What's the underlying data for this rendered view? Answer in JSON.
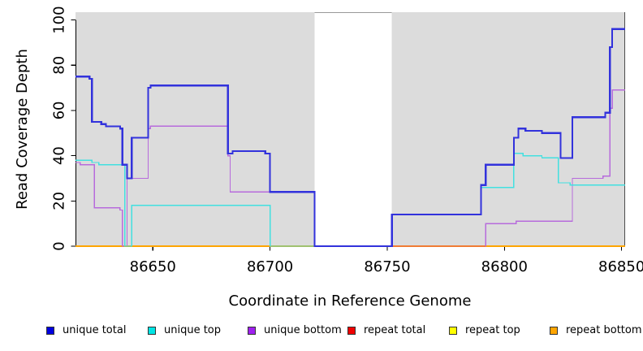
{
  "chart_data": {
    "type": "line",
    "subtype": "step-coverage-plot",
    "title": "",
    "xlabel": "Coordinate in Reference Genome",
    "ylabel": "Read Coverage Depth",
    "xlim": [
      86617,
      86851.5
    ],
    "ylim": [
      0,
      103.4
    ],
    "x_ticks": [
      86650,
      86700,
      86750,
      86800,
      86850
    ],
    "y_ticks": [
      0,
      20,
      40,
      60,
      80,
      100
    ],
    "grid": false,
    "plot_bg": "#dcdcdc",
    "unique_region_spans": [
      [
        86617,
        86719
      ],
      [
        86752,
        86851.5
      ]
    ],
    "repeat_region_span": [
      86719,
      86752
    ],
    "series": [
      {
        "name": "repeat top",
        "color": "#ffff00",
        "width": 1.2,
        "points": [
          [
            86617,
            0
          ]
        ]
      },
      {
        "name": "repeat total",
        "color": "#e05468",
        "width": 1.4,
        "points": [
          [
            86617,
            0
          ]
        ],
        "visible_zero_segment": [
          86752,
          86792
        ]
      },
      {
        "name": "repeat bottom",
        "color": "#ffa500",
        "width": 1.6,
        "points": [
          [
            86617,
            0
          ]
        ]
      },
      {
        "name": "unique bottom",
        "color": "#b76bdc",
        "width": 1.4,
        "points": [
          [
            86617,
            37
          ],
          [
            86619,
            36
          ],
          [
            86625,
            17
          ],
          [
            86636,
            16
          ],
          [
            86637,
            0
          ],
          [
            86639,
            30
          ],
          [
            86648,
            52
          ],
          [
            86649,
            53
          ],
          [
            86682,
            40
          ],
          [
            86683,
            24
          ],
          [
            86719,
            0
          ],
          [
            86792,
            10
          ],
          [
            86805,
            11
          ],
          [
            86829,
            30
          ],
          [
            86842,
            31
          ],
          [
            86845,
            61
          ],
          [
            86846,
            69
          ]
        ]
      },
      {
        "name": "unique top",
        "color": "#42e0e0",
        "width": 1.4,
        "points": [
          [
            86617,
            38
          ],
          [
            86624,
            37
          ],
          [
            86627,
            36
          ],
          [
            86638,
            0
          ],
          [
            86641,
            18
          ],
          [
            86700,
            0
          ],
          [
            86752,
            14
          ],
          [
            86790,
            26
          ],
          [
            86804,
            41
          ],
          [
            86808,
            40
          ],
          [
            86816,
            39
          ],
          [
            86823,
            28
          ],
          [
            86828,
            27
          ]
        ]
      },
      {
        "name": "unique total",
        "color": "#3232dc",
        "width": 2.2,
        "points": [
          [
            86617,
            75
          ],
          [
            86623,
            74
          ],
          [
            86624,
            55
          ],
          [
            86628,
            54
          ],
          [
            86630,
            53
          ],
          [
            86636,
            52
          ],
          [
            86637,
            36
          ],
          [
            86639,
            30
          ],
          [
            86641,
            48
          ],
          [
            86648,
            70
          ],
          [
            86649,
            71
          ],
          [
            86682,
            41
          ],
          [
            86684,
            42
          ],
          [
            86698,
            41
          ],
          [
            86700,
            24
          ],
          [
            86719,
            0
          ],
          [
            86752,
            14
          ],
          [
            86790,
            27
          ],
          [
            86792,
            36
          ],
          [
            86804,
            48
          ],
          [
            86806,
            52
          ],
          [
            86809,
            51
          ],
          [
            86816,
            50
          ],
          [
            86824,
            39
          ],
          [
            86829,
            57
          ],
          [
            86843,
            59
          ],
          [
            86845,
            88
          ],
          [
            86846,
            96
          ]
        ]
      }
    ]
  },
  "legend": {
    "items": [
      {
        "label": "unique total",
        "color": "#0000e0"
      },
      {
        "label": "unique top",
        "color": "#00e5e5"
      },
      {
        "label": "unique bottom",
        "color": "#a020f0"
      },
      {
        "label": "repeat total",
        "color": "#f00000"
      },
      {
        "label": "repeat top",
        "color": "#ffff00"
      },
      {
        "label": "repeat bottom",
        "color": "#ffa500"
      }
    ]
  }
}
